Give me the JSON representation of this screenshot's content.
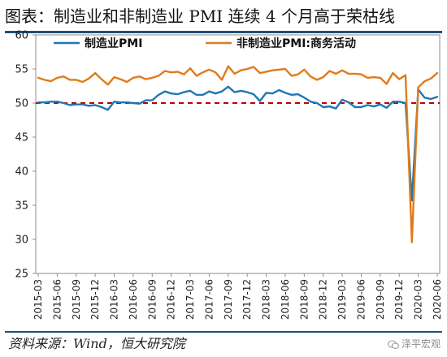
{
  "title": "图表：制造业和非制造业 PMI 连续 4 个月高于荣枯线",
  "source": "资料来源：Wind，恒大研究院",
  "watermark": "泽平宏观",
  "watermark_icon": "wechat-bubble-icon",
  "chart_data": {
    "type": "line",
    "ylim": [
      25,
      60
    ],
    "yticks": [
      25,
      30,
      35,
      40,
      45,
      50,
      55,
      60
    ],
    "xtick_labels": [
      "2015-03",
      "2015-06",
      "2015-09",
      "2015-12",
      "2016-03",
      "2016-06",
      "2016-09",
      "2016-12",
      "2017-03",
      "2017-06",
      "2017-09",
      "2017-12",
      "2018-03",
      "2018-06",
      "2018-09",
      "2018-12",
      "2019-03",
      "2019-06",
      "2019-09",
      "2019-12",
      "2020-03",
      "2020-06"
    ],
    "reference_line": {
      "y": 50,
      "color": "#c00000",
      "style": "dashed"
    },
    "legend_position": "top",
    "grid": false,
    "x": [
      "2015-03",
      "2015-04",
      "2015-05",
      "2015-06",
      "2015-07",
      "2015-08",
      "2015-09",
      "2015-10",
      "2015-11",
      "2015-12",
      "2016-01",
      "2016-02",
      "2016-03",
      "2016-04",
      "2016-05",
      "2016-06",
      "2016-07",
      "2016-08",
      "2016-09",
      "2016-10",
      "2016-11",
      "2016-12",
      "2017-01",
      "2017-02",
      "2017-03",
      "2017-04",
      "2017-05",
      "2017-06",
      "2017-07",
      "2017-08",
      "2017-09",
      "2017-10",
      "2017-11",
      "2017-12",
      "2018-01",
      "2018-02",
      "2018-03",
      "2018-04",
      "2018-05",
      "2018-06",
      "2018-07",
      "2018-08",
      "2018-09",
      "2018-10",
      "2018-11",
      "2018-12",
      "2019-01",
      "2019-02",
      "2019-03",
      "2019-04",
      "2019-05",
      "2019-06",
      "2019-07",
      "2019-08",
      "2019-09",
      "2019-10",
      "2019-11",
      "2019-12",
      "2020-01",
      "2020-02",
      "2020-03",
      "2020-04",
      "2020-05",
      "2020-06"
    ],
    "series": [
      {
        "name": "制造业PMI",
        "color": "#1f77b4",
        "values": [
          50.1,
          50.1,
          50.2,
          50.2,
          50.0,
          49.7,
          49.8,
          49.8,
          49.6,
          49.7,
          49.4,
          49.0,
          50.2,
          50.1,
          50.1,
          50.0,
          49.9,
          50.4,
          50.4,
          51.2,
          51.7,
          51.4,
          51.3,
          51.6,
          51.8,
          51.2,
          51.2,
          51.7,
          51.4,
          51.7,
          52.4,
          51.6,
          51.8,
          51.6,
          51.3,
          50.3,
          51.5,
          51.4,
          51.9,
          51.5,
          51.2,
          51.3,
          50.8,
          50.2,
          50.0,
          49.4,
          49.5,
          49.2,
          50.5,
          50.1,
          49.4,
          49.4,
          49.7,
          49.5,
          49.8,
          49.3,
          50.2,
          50.2,
          50.0,
          35.7,
          52.0,
          50.8,
          50.6,
          50.9
        ]
      },
      {
        "name": "非制造业PMI:商务活动",
        "color": "#e07b1a",
        "values": [
          53.7,
          53.4,
          53.2,
          53.7,
          53.9,
          53.4,
          53.4,
          53.1,
          53.6,
          54.4,
          53.5,
          52.7,
          53.8,
          53.5,
          53.1,
          53.7,
          53.9,
          53.5,
          53.7,
          54.0,
          54.7,
          54.5,
          54.6,
          54.2,
          55.1,
          54.0,
          54.5,
          54.9,
          54.5,
          53.4,
          55.4,
          54.3,
          54.8,
          55.0,
          55.3,
          54.4,
          54.6,
          54.8,
          54.9,
          55.0,
          54.0,
          54.2,
          54.9,
          53.9,
          53.4,
          53.8,
          54.7,
          54.3,
          54.8,
          54.3,
          54.3,
          54.2,
          53.7,
          53.8,
          53.7,
          52.8,
          54.4,
          53.5,
          54.1,
          29.6,
          52.3,
          53.2,
          53.6,
          54.4
        ]
      }
    ]
  }
}
